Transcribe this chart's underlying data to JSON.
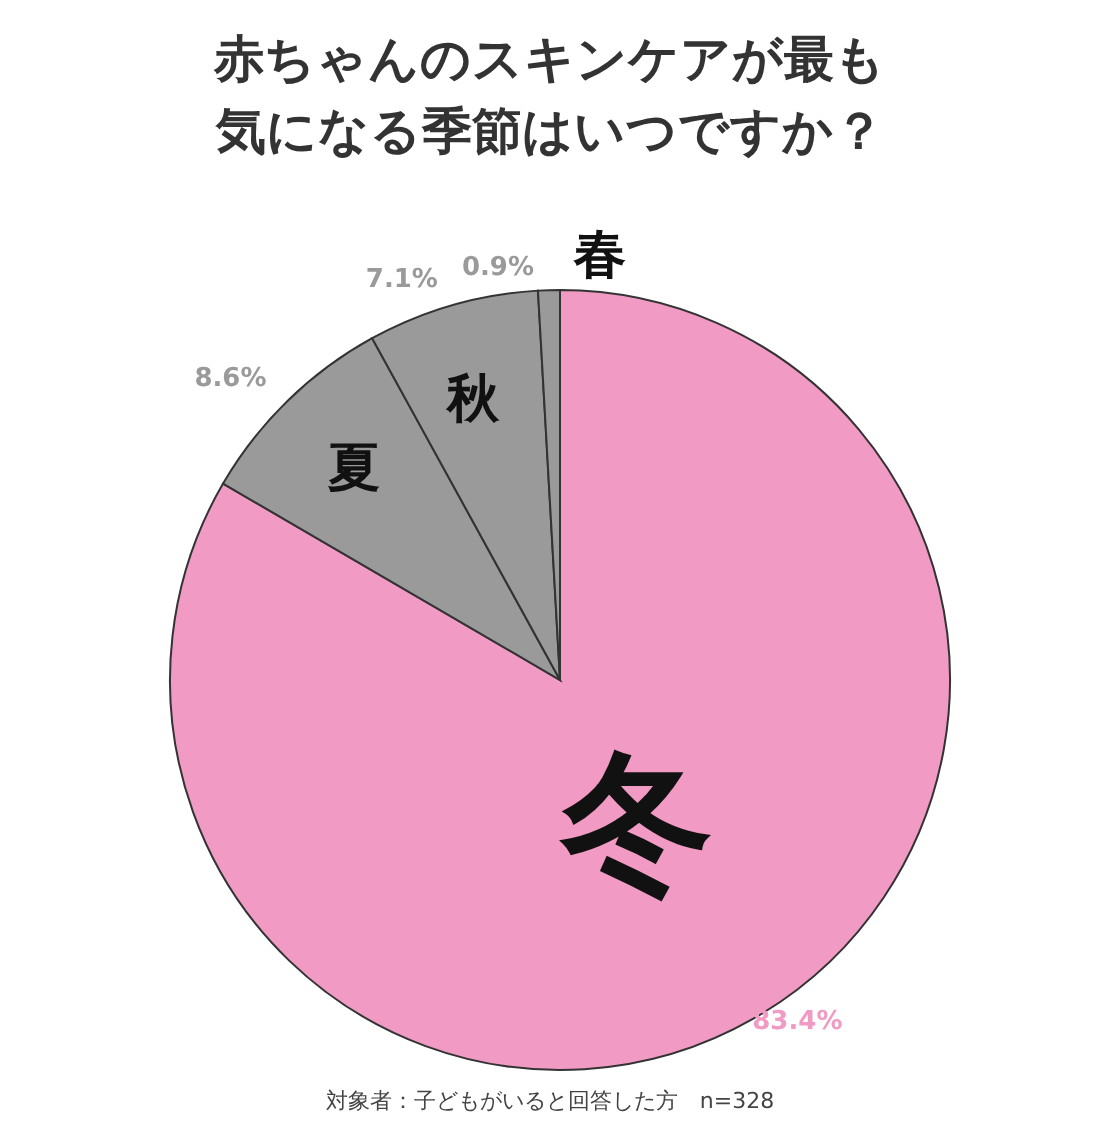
{
  "chart_data": {
    "type": "pie",
    "title": "赤ちゃんのスキンケアが最も気になる季節はいつですか？",
    "categories": [
      "冬",
      "夏",
      "秋",
      "春"
    ],
    "values": [
      83.4,
      8.6,
      7.1,
      0.9
    ],
    "colors": [
      "#f09ac4",
      "#9a9a9a",
      "#9a9a9a",
      "#9a9a9a"
    ],
    "value_labels": [
      "83.4%",
      "8.6%",
      "7.1%",
      "0.9%"
    ],
    "annotations": [
      "対象者：子どもがいると回答した方　n=328"
    ]
  }
}
